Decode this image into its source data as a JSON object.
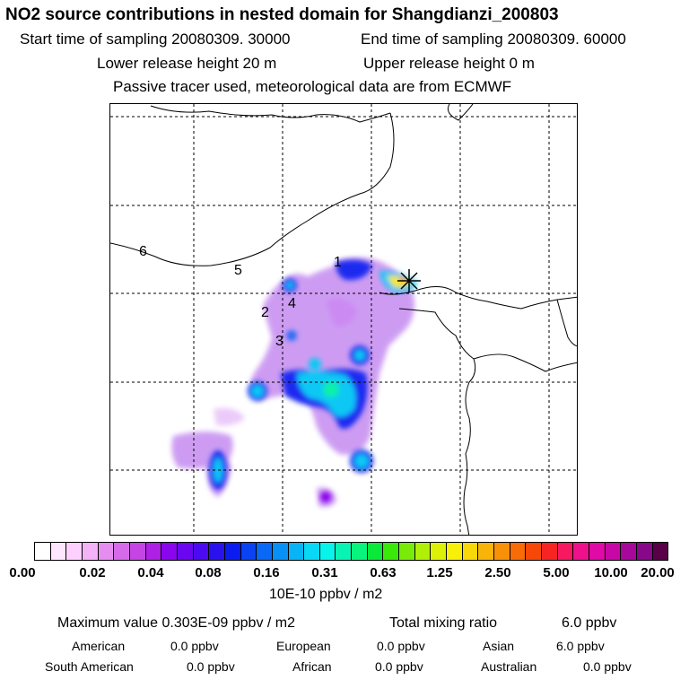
{
  "header": {
    "title": "NO2 source contributions in nested domain for Shangdianzi_200803",
    "start_time": "Start time of sampling 20080309. 30000",
    "end_time": "End time of sampling 20080309. 60000",
    "lower_height": "Lower release height   20 m",
    "upper_height": "Upper release height    0 m",
    "tracer_note": "Passive tracer used, meteorological data are from ECMWF"
  },
  "map": {
    "region_labels": [
      "1",
      "2",
      "3",
      "4",
      "5",
      "6"
    ],
    "receptor_marker": "x-star-icon"
  },
  "legend": {
    "tick_labels": [
      "0.00",
      "0.02",
      "0.04",
      "0.08",
      "0.16",
      "0.31",
      "0.63",
      "1.25",
      "2.50",
      "5.00",
      "10.00",
      "20.00"
    ],
    "colors": [
      "#ffffff",
      "#ffe6ff",
      "#fdd0fd",
      "#f4b3f6",
      "#e68ef0",
      "#d66ae8",
      "#c545e4",
      "#ad20e4",
      "#8a06ee",
      "#6a06f0",
      "#4b0aef",
      "#2a12ee",
      "#0b1cf0",
      "#0a42f4",
      "#0a68f6",
      "#0890f6",
      "#08b4f6",
      "#08d8f6",
      "#08f4ea",
      "#08f4b4",
      "#08f47c",
      "#0ae83a",
      "#3ae80a",
      "#78ec08",
      "#b0f008",
      "#dcf008",
      "#f8f008",
      "#f8d808",
      "#f8b408",
      "#f89008",
      "#f86c08",
      "#f84808",
      "#f82424",
      "#f81860",
      "#f0108c",
      "#e00aa6",
      "#c808a6",
      "#a8089a",
      "#88088a",
      "#580048"
    ],
    "units": "10E-10 ppbv / m2"
  },
  "summary": {
    "max_value": "Maximum value  0.303E-09 ppbv / m2",
    "total_label": "Total mixing ratio",
    "total_value": "6.0 ppbv",
    "regions": [
      {
        "name": "American",
        "value": "0.0 ppbv"
      },
      {
        "name": "European",
        "value": "0.0 ppbv"
      },
      {
        "name": "Asian",
        "value": "6.0 ppbv"
      },
      {
        "name": "South American",
        "value": "0.0 ppbv"
      },
      {
        "name": "African",
        "value": "0.0 ppbv"
      },
      {
        "name": "Australian",
        "value": "0.0 ppbv"
      }
    ]
  }
}
